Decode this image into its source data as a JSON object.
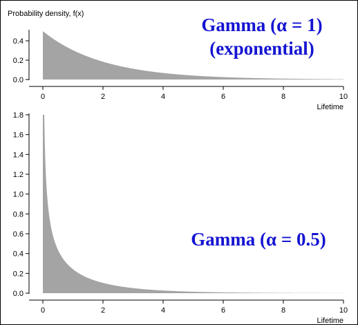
{
  "accent_color": "#1414d2",
  "fill_color": "#a4a4a4",
  "chart_data": [
    {
      "type": "area",
      "title": [
        "Gamma (α = 1)",
        "(exponential)"
      ],
      "ylabel": "Probability density, f(x)",
      "xlabel": "Lifetime",
      "distribution": {
        "family": "gamma",
        "alpha": 1,
        "beta": 2
      },
      "x": [
        0,
        0.5,
        1,
        1.5,
        2,
        3,
        4,
        5,
        6,
        7,
        8,
        9,
        10
      ],
      "y": [
        0.5,
        0.389,
        0.303,
        0.236,
        0.184,
        0.112,
        0.068,
        0.041,
        0.025,
        0.015,
        0.009,
        0.006,
        0.003
      ],
      "xlim": [
        0,
        10
      ],
      "ylim": [
        0,
        0.5
      ],
      "xticks": [
        "0",
        "2",
        "4",
        "6",
        "8",
        "10"
      ],
      "yticks": [
        "0.0",
        "0.2",
        "0.4"
      ]
    },
    {
      "type": "area",
      "title": [
        "Gamma (α = 0.5)"
      ],
      "ylabel": "",
      "xlabel": "Lifetime",
      "distribution": {
        "family": "gamma",
        "alpha": 0.5,
        "beta": 2
      },
      "x": [
        0.01,
        0.1,
        0.25,
        0.5,
        1,
        2,
        3,
        4,
        5,
        6,
        7,
        8,
        9,
        10
      ],
      "y": [
        1.8,
        0.82,
        0.519,
        0.349,
        0.216,
        0.104,
        0.056,
        0.031,
        0.018,
        0.01,
        0.006,
        0.004,
        0.002,
        0.001
      ],
      "xlim": [
        0,
        10
      ],
      "ylim": [
        0,
        1.8
      ],
      "xticks": [
        "0",
        "2",
        "4",
        "6",
        "8",
        "10"
      ],
      "yticks": [
        "0.0",
        "0.2",
        "0.4",
        "0.6",
        "0.8",
        "1.0",
        "1.2",
        "1.4",
        "1.6",
        "1.8"
      ]
    }
  ]
}
